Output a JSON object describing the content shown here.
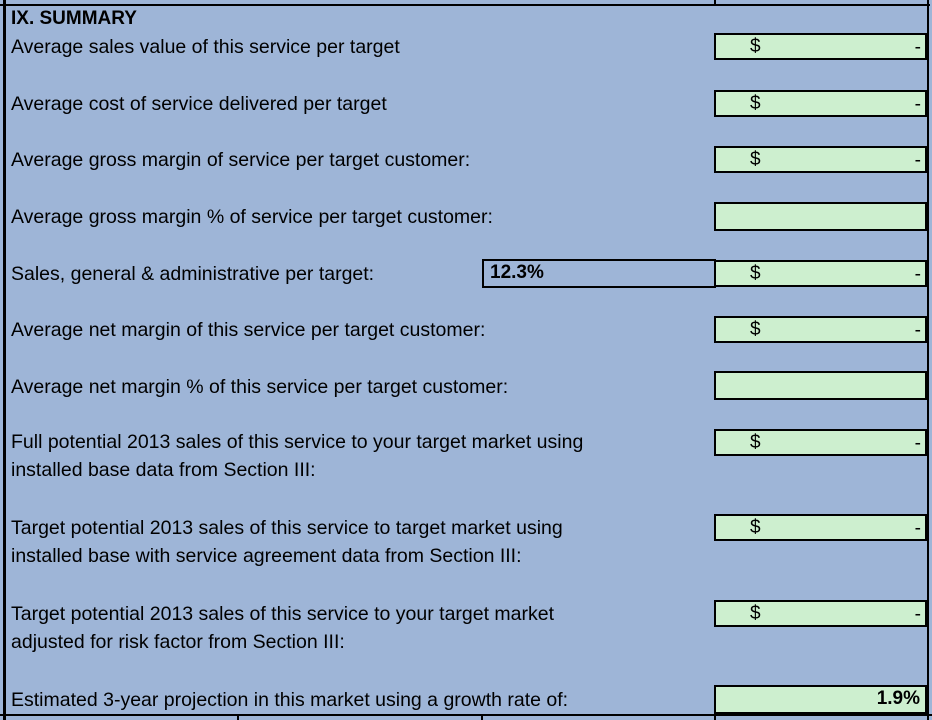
{
  "section_title": "IX. SUMMARY",
  "rows": [
    {
      "label": "Average sales value of this service per target",
      "currency": "$",
      "value": "-"
    },
    {
      "label": "Average cost of service delivered per target",
      "currency": "$",
      "value": "-"
    },
    {
      "label": "Average gross margin of service per target customer:",
      "currency": "$",
      "value": "-"
    },
    {
      "label": "Average gross margin % of service per target customer:",
      "currency": "",
      "value": ""
    },
    {
      "label": "Sales, general & administrative per target:",
      "rate": "12.3%",
      "currency": "$",
      "value": "-"
    },
    {
      "label": "Average net margin of this service per target customer:",
      "currency": "$",
      "value": "-"
    },
    {
      "label": "Average net margin % of this service per target customer:",
      "currency": "",
      "value": ""
    },
    {
      "label_line1": "Full potential 2013 sales of this service to your target market using",
      "label_line2": "installed base data from Section III:",
      "currency": "$",
      "value": "-"
    },
    {
      "label_line1": "Target potential 2013 sales of this service to target market using",
      "label_line2": "installed base with service agreement data from Section III:",
      "currency": "$",
      "value": "-"
    },
    {
      "label_line1": "Target potential 2013 sales of this service to your target market",
      "label_line2": "adjusted for risk factor from Section III:",
      "currency": "$",
      "value": "-"
    },
    {
      "label": "Estimated 3-year projection in this market using a growth rate of:",
      "value": "1.9%"
    }
  ],
  "colors": {
    "background": "#9eb5d7",
    "cell_fill": "#cdefcf",
    "border": "#000000"
  }
}
